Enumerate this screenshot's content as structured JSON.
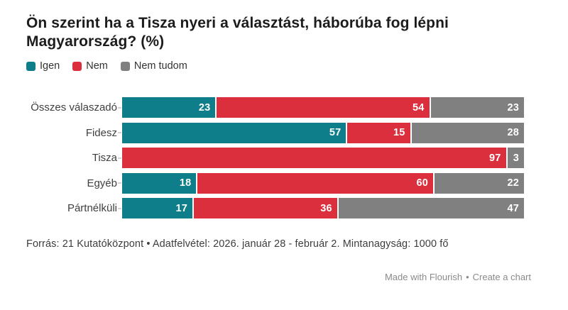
{
  "title": "Ön szerint ha a Tisza nyeri a választást, háborúba fog lépni Magyarország? (%)",
  "legend": [
    {
      "label": "Igen",
      "color": "#0e7f8a"
    },
    {
      "label": "Nem",
      "color": "#dc2f3e"
    },
    {
      "label": "Nem tudom",
      "color": "#808080"
    }
  ],
  "chart_data": {
    "type": "bar",
    "orientation": "horizontal",
    "stacked": true,
    "title": "Ön szerint ha a Tisza nyeri a választást, háborúba fog lépni Magyarország? (%)",
    "categories": [
      "Összes válaszadó",
      "Fidesz",
      "Tisza",
      "Egyéb",
      "Pártnélküli"
    ],
    "series": [
      {
        "name": "Igen",
        "color": "#0e7f8a",
        "values": [
          23,
          57,
          0,
          18,
          17
        ]
      },
      {
        "name": "Nem",
        "color": "#dc2f3e",
        "values": [
          54,
          15,
          97,
          60,
          36
        ]
      },
      {
        "name": "Nem tudom",
        "color": "#808080",
        "values": [
          23,
          28,
          3,
          22,
          47
        ]
      }
    ],
    "xlim": [
      0,
      100
    ],
    "value_labels": "inside-end",
    "legend_position": "top",
    "grid": false
  },
  "footer": {
    "source": "Forrás: 21 Kutatóközpont • Adatfelvétel: 2026. január 28 - február 2. Mintanagyság: 1000 fő"
  },
  "credit": {
    "made_with": "Made with Flourish",
    "separator": "•",
    "create": "Create a chart"
  }
}
